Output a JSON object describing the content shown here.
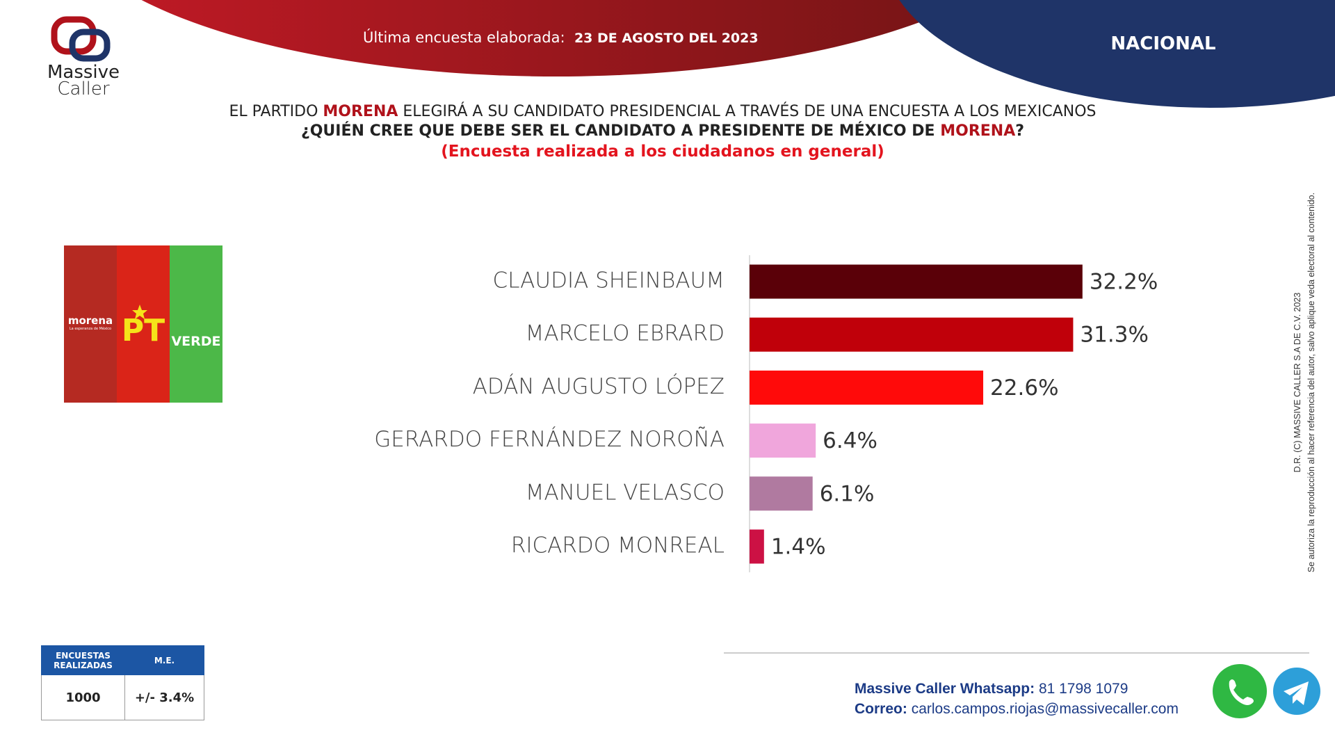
{
  "header": {
    "survey_label": "Última encuesta elaborada:",
    "survey_date": "23 DE AGOSTO DEL 2023",
    "scope": "NACIONAL"
  },
  "logo": {
    "line1": "Massive",
    "line2": "Caller"
  },
  "intro": {
    "before": "EL PARTIDO ",
    "party": "MORENA",
    "after": " ELEGIRÁ A SU CANDIDATO PRESIDENCIAL A TRAVÉS DE UNA ENCUESTA A LOS MEXICANOS"
  },
  "question": {
    "before": "¿QUIÉN CREE QUE DEBE SER EL CANDIDATO A PRESIDENTE DE MÉXICO DE ",
    "party": "MORENA",
    "after": "?"
  },
  "note": "(Encuesta realizada a los ciudadanos en general)",
  "parties": {
    "morena": "morena",
    "morena_tagline": "La esperanza de México",
    "pt": "PT",
    "verde": "VERDE"
  },
  "chart_data": {
    "type": "hbar",
    "categories": [
      "CLAUDIA SHEINBAUM",
      "MARCELO EBRARD",
      "ADÁN AUGUSTO LÓPEZ",
      "GERARDO FERNÁNDEZ NOROÑA",
      "MANUEL VELASCO",
      "RICARDO MONREAL"
    ],
    "values": [
      32.2,
      31.3,
      22.6,
      6.4,
      6.1,
      1.4
    ],
    "value_labels": [
      "32.2%",
      "31.3%",
      "22.6%",
      "6.4%",
      "6.1%",
      "1.4%"
    ],
    "colors": [
      "#5a0008",
      "#c0000a",
      "#ff0a0a",
      "#f0a6dc",
      "#b07aa0",
      "#cc1144"
    ]
  },
  "sample_table": {
    "headers": [
      "ENCUESTAS REALIZADAS",
      "M.E."
    ],
    "row": [
      "1000",
      "+/- 3.4%"
    ]
  },
  "footer": {
    "whatsapp_label": "Massive Caller Whatsapp:",
    "whatsapp": "81 1798 1079",
    "email_label": "Correo:",
    "email": "carlos.campos.riojas@massivecaller.com"
  },
  "copyright": {
    "line1": "D.R. (C) MASSIVE CALLER S.A DE C.V. 2023",
    "line2": "Se autoriza la reproducción al hacer referencia del autor, salvo aplique veda electoral al contenido."
  }
}
